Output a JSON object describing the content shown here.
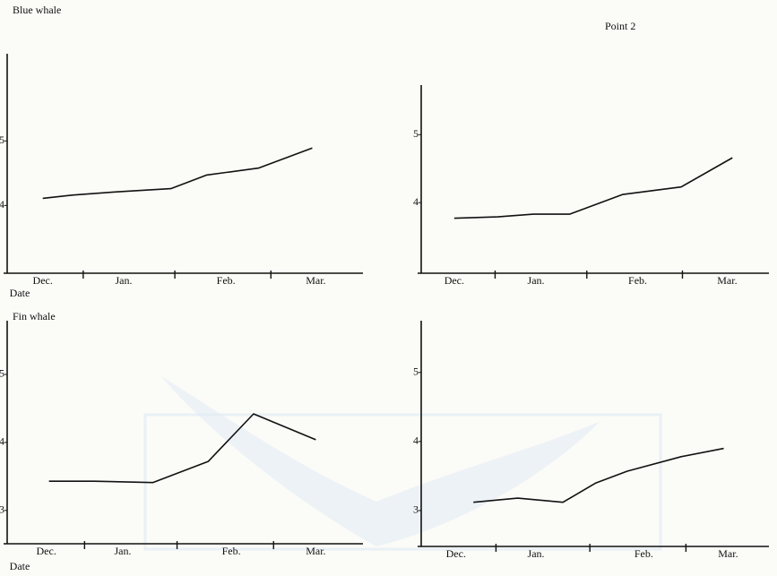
{
  "chart_data": [
    {
      "type": "line",
      "title": "Blue whale",
      "x_label": "Date",
      "xlim": [
        0,
        4
      ],
      "ylim": [
        2.95,
        6.35
      ],
      "yticks": [
        4,
        5
      ],
      "xticks": [
        {
          "value": 0.4,
          "label": "Dec."
        },
        {
          "value": 1.31,
          "label": "Jan."
        },
        {
          "value": 2.46,
          "label": "Feb."
        },
        {
          "value": 3.47,
          "label": "Mar."
        }
      ],
      "series": [
        {
          "color": "#111111",
          "x": [
            0.4,
            0.73,
            1.23,
            1.84,
            2.24,
            2.83,
            3.43
          ],
          "values": [
            4.11,
            4.16,
            4.21,
            4.26,
            4.47,
            4.58,
            4.89
          ]
        }
      ]
    },
    {
      "type": "line",
      "annotation": "Point  2",
      "xlim": [
        0,
        4
      ],
      "ylim": [
        2.96,
        5.73
      ],
      "yticks": [
        4,
        5
      ],
      "xticks": [
        {
          "value": 0.38,
          "label": "Dec."
        },
        {
          "value": 1.32,
          "label": "Jan."
        },
        {
          "value": 2.49,
          "label": "Feb."
        },
        {
          "value": 3.52,
          "label": "Mar."
        }
      ],
      "series": [
        {
          "color": "#111111",
          "x": [
            0.38,
            0.88,
            1.29,
            1.71,
            2.32,
            2.99,
            3.58
          ],
          "values": [
            3.77,
            3.79,
            3.83,
            3.83,
            4.12,
            4.23,
            4.66
          ]
        }
      ]
    },
    {
      "type": "line",
      "title": "Fin whale",
      "x_label": "Date",
      "xlim": [
        0,
        4
      ],
      "ylim": [
        2.51,
        5.79
      ],
      "yticks": [
        3,
        4,
        5
      ],
      "xticks": [
        {
          "value": 0.44,
          "label": "Dec."
        },
        {
          "value": 1.3,
          "label": "Jan."
        },
        {
          "value": 2.52,
          "label": "Feb."
        },
        {
          "value": 3.47,
          "label": "Mar."
        }
      ],
      "series": [
        {
          "color": "#111111",
          "x": [
            0.47,
            0.98,
            1.64,
            2.26,
            2.77,
            3.47
          ],
          "values": [
            3.43,
            3.43,
            3.41,
            3.72,
            4.42,
            4.04
          ]
        }
      ]
    },
    {
      "type": "line",
      "xlim": [
        0,
        4
      ],
      "ylim": [
        2.48,
        5.75
      ],
      "yticks": [
        3,
        4,
        5
      ],
      "xticks": [
        {
          "value": 0.4,
          "label": "Dec."
        },
        {
          "value": 1.32,
          "label": "Jan."
        },
        {
          "value": 2.56,
          "label": "Feb."
        },
        {
          "value": 3.53,
          "label": "Mar."
        }
      ],
      "series": [
        {
          "color": "#111111",
          "x": [
            0.6,
            1.11,
            1.63,
            2.01,
            2.37,
            2.99,
            3.48
          ],
          "values": [
            3.12,
            3.18,
            3.12,
            3.4,
            3.57,
            3.78,
            3.9
          ]
        }
      ]
    }
  ]
}
